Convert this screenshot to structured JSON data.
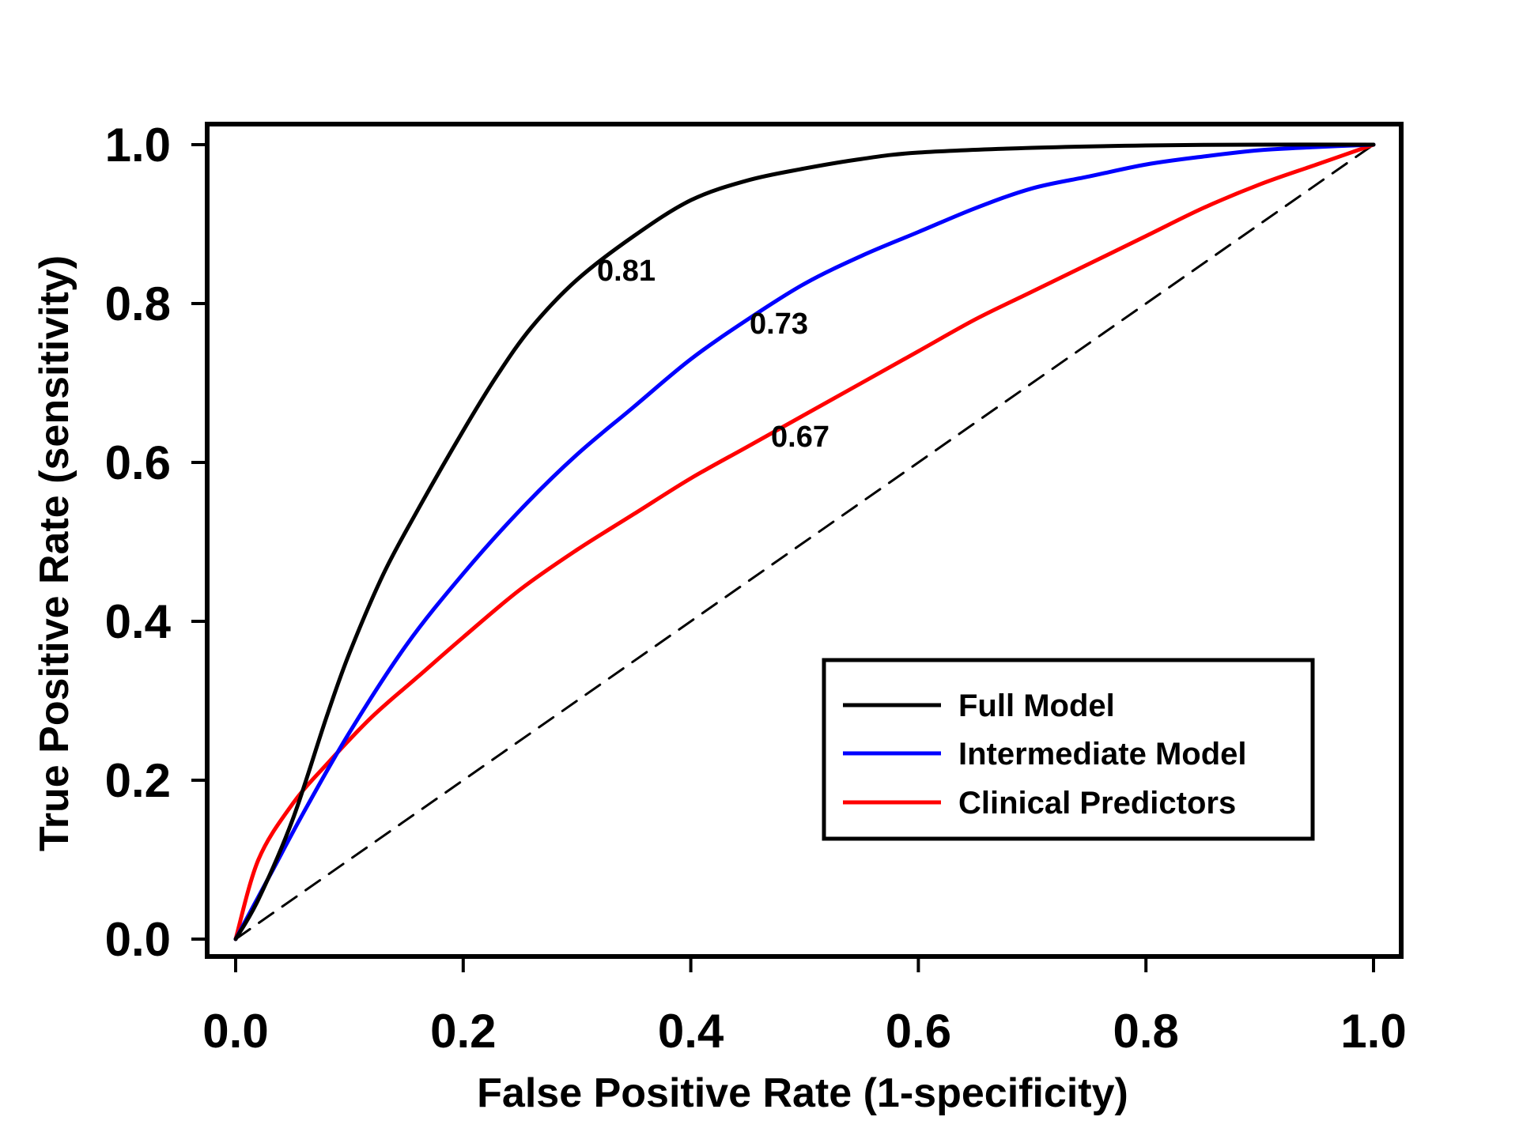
{
  "chart_data": {
    "type": "line",
    "xlabel": "False Positive Rate (1-specificity)",
    "ylabel": "True Positive Rate (sensitivity)",
    "xlim": [
      0.0,
      1.0
    ],
    "ylim": [
      0.0,
      1.0
    ],
    "x_ticks": [
      "0.0",
      "0.2",
      "0.4",
      "0.6",
      "0.8",
      "1.0"
    ],
    "y_ticks": [
      "0.0",
      "0.2",
      "0.4",
      "0.6",
      "0.8",
      "1.0"
    ],
    "grid": false,
    "legend_position": "bottom-right",
    "series": [
      {
        "name": "Full Model",
        "color": "#000000",
        "points": [
          [
            0,
            0
          ],
          [
            0.02,
            0.05
          ],
          [
            0.05,
            0.15
          ],
          [
            0.08,
            0.28
          ],
          [
            0.1,
            0.36
          ],
          [
            0.13,
            0.46
          ],
          [
            0.16,
            0.54
          ],
          [
            0.2,
            0.64
          ],
          [
            0.23,
            0.71
          ],
          [
            0.26,
            0.77
          ],
          [
            0.3,
            0.83
          ],
          [
            0.35,
            0.885
          ],
          [
            0.4,
            0.93
          ],
          [
            0.45,
            0.955
          ],
          [
            0.5,
            0.97
          ],
          [
            0.55,
            0.982
          ],
          [
            0.6,
            0.99
          ],
          [
            0.7,
            0.996
          ],
          [
            0.8,
            0.999
          ],
          [
            0.9,
            1.0
          ],
          [
            1.0,
            1.0
          ]
        ],
        "auc_label": "0.81"
      },
      {
        "name": "Intermediate Model",
        "color": "#0000ff",
        "points": [
          [
            0,
            0
          ],
          [
            0.03,
            0.08
          ],
          [
            0.06,
            0.16
          ],
          [
            0.1,
            0.26
          ],
          [
            0.15,
            0.37
          ],
          [
            0.2,
            0.46
          ],
          [
            0.25,
            0.54
          ],
          [
            0.3,
            0.61
          ],
          [
            0.35,
            0.67
          ],
          [
            0.4,
            0.73
          ],
          [
            0.45,
            0.78
          ],
          [
            0.5,
            0.825
          ],
          [
            0.55,
            0.86
          ],
          [
            0.6,
            0.89
          ],
          [
            0.65,
            0.92
          ],
          [
            0.7,
            0.945
          ],
          [
            0.75,
            0.96
          ],
          [
            0.8,
            0.975
          ],
          [
            0.85,
            0.985
          ],
          [
            0.9,
            0.993
          ],
          [
            0.95,
            0.997
          ],
          [
            1.0,
            1.0
          ]
        ],
        "auc_label": "0.73"
      },
      {
        "name": "Clinical Predictors",
        "color": "#ff0000",
        "points": [
          [
            0,
            0
          ],
          [
            0.02,
            0.1
          ],
          [
            0.05,
            0.17
          ],
          [
            0.08,
            0.22
          ],
          [
            0.12,
            0.28
          ],
          [
            0.16,
            0.33
          ],
          [
            0.2,
            0.38
          ],
          [
            0.25,
            0.44
          ],
          [
            0.3,
            0.49
          ],
          [
            0.35,
            0.535
          ],
          [
            0.4,
            0.58
          ],
          [
            0.45,
            0.62
          ],
          [
            0.5,
            0.66
          ],
          [
            0.55,
            0.7
          ],
          [
            0.6,
            0.74
          ],
          [
            0.65,
            0.78
          ],
          [
            0.7,
            0.815
          ],
          [
            0.75,
            0.85
          ],
          [
            0.8,
            0.885
          ],
          [
            0.85,
            0.92
          ],
          [
            0.9,
            0.95
          ],
          [
            0.95,
            0.975
          ],
          [
            1.0,
            1.0
          ]
        ],
        "auc_label": "0.67"
      },
      {
        "name": "",
        "color": "#000000",
        "dashed": true,
        "points": [
          [
            0,
            0
          ],
          [
            1,
            1
          ]
        ]
      }
    ]
  }
}
